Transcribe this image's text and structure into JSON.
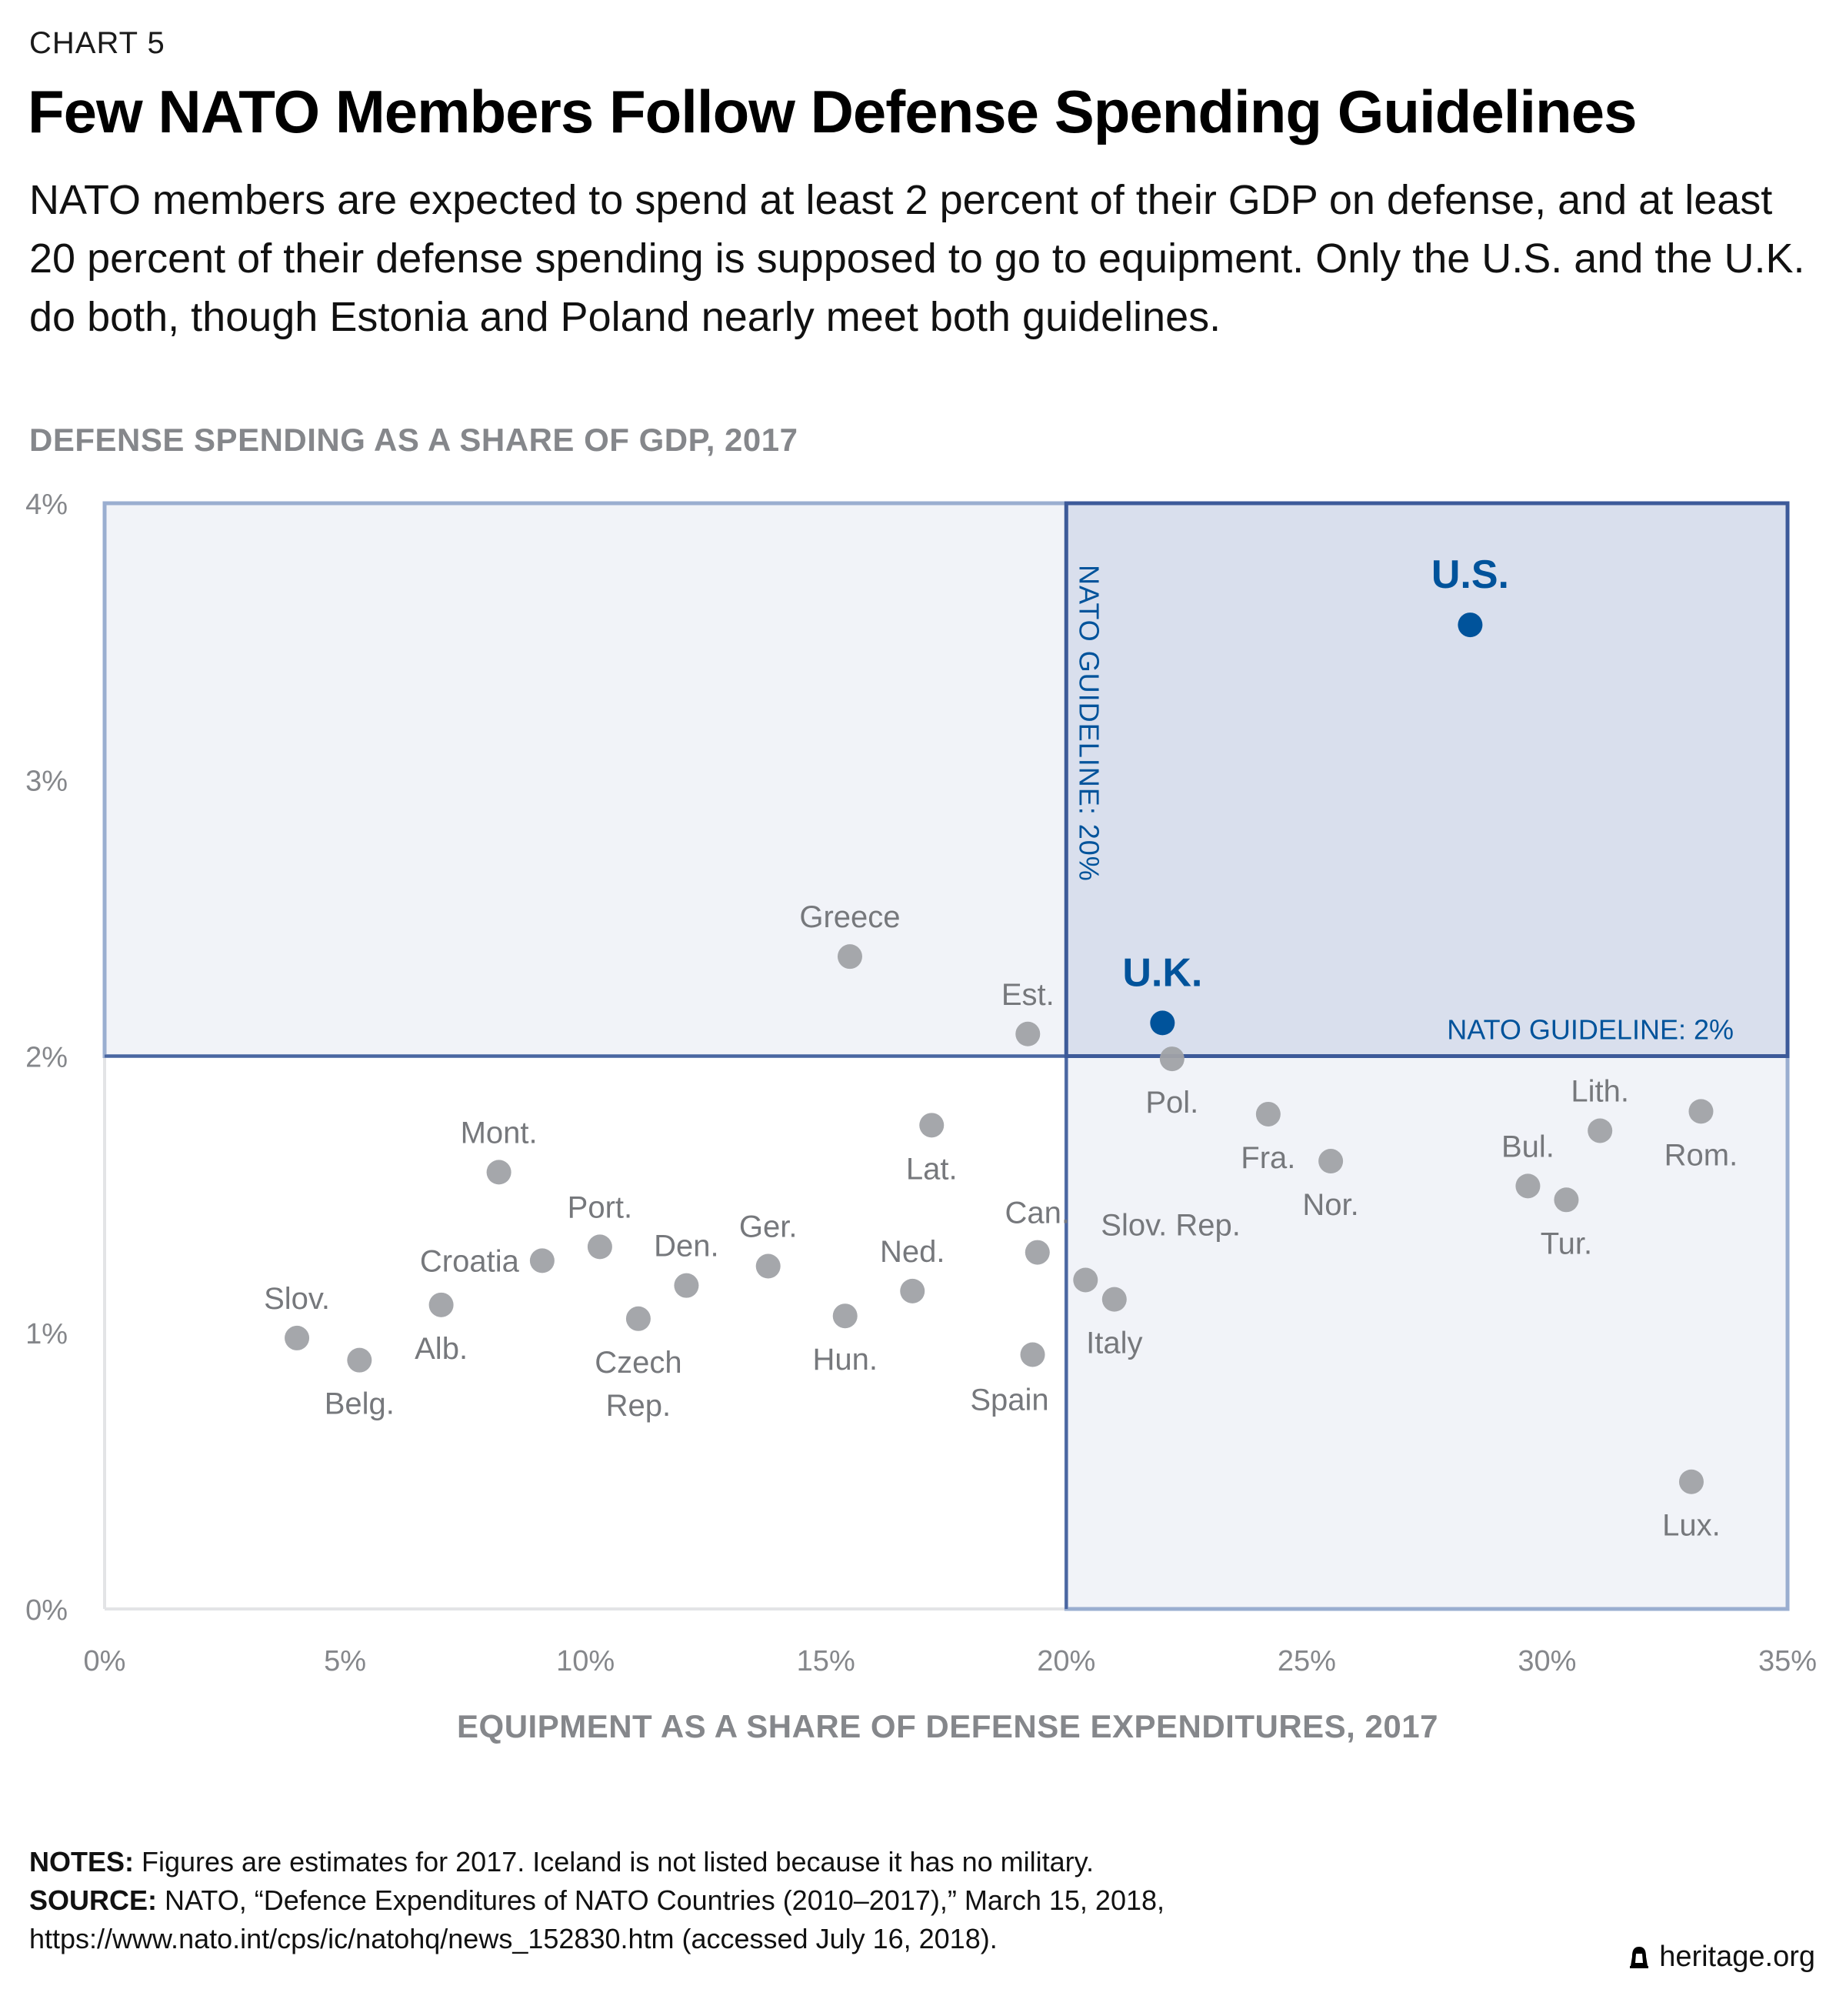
{
  "header": {
    "chart_label": "CHART 5",
    "title": "Few NATO Members Follow Defense Spending Guidelines",
    "subtitle": "NATO members are expected to spend at least 2 percent of their GDP on defense, and at least 20 percent of their defense spending is supposed to go to equipment. Only the U.S. and the U.K. do both, though Estonia and Poland nearly meet both guidelines."
  },
  "chart_data": {
    "type": "scatter",
    "title": "Few NATO Members Follow Defense Spending Guidelines",
    "xlabel": "EQUIPMENT AS A SHARE OF DEFENSE EXPENDITURES, 2017",
    "ylabel": "DEFENSE SPENDING AS A SHARE OF GDP, 2017",
    "xlim": [
      0,
      35
    ],
    "ylim": [
      0,
      4
    ],
    "x_ticks": [
      "0%",
      "5%",
      "10%",
      "15%",
      "20%",
      "25%",
      "30%",
      "35%"
    ],
    "x_tick_values": [
      0,
      5,
      10,
      15,
      20,
      25,
      30,
      35
    ],
    "y_ticks": [
      "0%",
      "1%",
      "2%",
      "3%",
      "4%"
    ],
    "y_tick_values": [
      0,
      1,
      2,
      3,
      4
    ],
    "grid": false,
    "guidelines": [
      {
        "axis": "x",
        "value": 20,
        "label": "NATO GUIDELINE: 20%"
      },
      {
        "axis": "y",
        "value": 2,
        "label": "NATO GUIDELINE: 2%"
      }
    ],
    "colors": {
      "highlight": "#00539b",
      "point": "#a0a2a7",
      "label": "#76787c",
      "region_fill": "#f1f3f8",
      "region_border": "#9aaed0",
      "both_fill": "#d9dfed",
      "both_border": "#3d5a99",
      "axis_text": "#85878b"
    },
    "points": [
      {
        "label": "U.S.",
        "x": 28.4,
        "y": 3.56,
        "highlight": true,
        "label_pos": "above"
      },
      {
        "label": "U.K.",
        "x": 22.0,
        "y": 2.12,
        "highlight": true,
        "label_pos": "above"
      },
      {
        "label": "Greece",
        "x": 15.5,
        "y": 2.36,
        "highlight": false,
        "label_pos": "above"
      },
      {
        "label": "Est.",
        "x": 19.2,
        "y": 2.08,
        "highlight": false,
        "label_pos": "above"
      },
      {
        "label": "Pol.",
        "x": 22.2,
        "y": 1.99,
        "highlight": false,
        "label_pos": "below"
      },
      {
        "label": "Fra.",
        "x": 24.2,
        "y": 1.79,
        "highlight": false,
        "label_pos": "below"
      },
      {
        "label": "Nor.",
        "x": 25.5,
        "y": 1.62,
        "highlight": false,
        "label_pos": "below"
      },
      {
        "label": "Lith.",
        "x": 31.1,
        "y": 1.73,
        "highlight": false,
        "label_pos": "above"
      },
      {
        "label": "Rom.",
        "x": 33.2,
        "y": 1.8,
        "highlight": false,
        "label_pos": "below"
      },
      {
        "label": "Bul.",
        "x": 29.6,
        "y": 1.53,
        "highlight": false,
        "label_pos": "above"
      },
      {
        "label": "Tur.",
        "x": 30.4,
        "y": 1.48,
        "highlight": false,
        "label_pos": "below"
      },
      {
        "label": "Lux.",
        "x": 33.0,
        "y": 0.46,
        "highlight": false,
        "label_pos": "below"
      },
      {
        "label": "Slov. Rep.",
        "x": 20.4,
        "y": 1.19,
        "highlight": false,
        "label_pos": "above-right"
      },
      {
        "label": "Italy",
        "x": 21.0,
        "y": 1.12,
        "highlight": false,
        "label_pos": "below"
      },
      {
        "label": "Can.",
        "x": 19.4,
        "y": 1.29,
        "highlight": false,
        "label_pos": "above"
      },
      {
        "label": "Spain",
        "x": 19.3,
        "y": 0.92,
        "highlight": false,
        "label_pos": "below-left"
      },
      {
        "label": "Lat.",
        "x": 17.2,
        "y": 1.75,
        "highlight": false,
        "label_pos": "below"
      },
      {
        "label": "Ned.",
        "x": 16.8,
        "y": 1.15,
        "highlight": false,
        "label_pos": "above"
      },
      {
        "label": "Hun.",
        "x": 15.4,
        "y": 1.06,
        "highlight": false,
        "label_pos": "below"
      },
      {
        "label": "Ger.",
        "x": 13.8,
        "y": 1.24,
        "highlight": false,
        "label_pos": "above"
      },
      {
        "label": "Den.",
        "x": 12.1,
        "y": 1.17,
        "highlight": false,
        "label_pos": "above"
      },
      {
        "label": "Czech Rep.",
        "x": 11.1,
        "y": 1.05,
        "highlight": false,
        "label_pos": "below"
      },
      {
        "label": "Port.",
        "x": 10.3,
        "y": 1.31,
        "highlight": false,
        "label_pos": "above"
      },
      {
        "label": "Croatia",
        "x": 9.1,
        "y": 1.26,
        "highlight": false,
        "label_pos": "left"
      },
      {
        "label": "Mont.",
        "x": 8.2,
        "y": 1.58,
        "highlight": false,
        "label_pos": "above"
      },
      {
        "label": "Alb.",
        "x": 7.0,
        "y": 1.1,
        "highlight": false,
        "label_pos": "below"
      },
      {
        "label": "Slov.",
        "x": 4.0,
        "y": 0.98,
        "highlight": false,
        "label_pos": "above"
      },
      {
        "label": "Belg.",
        "x": 5.3,
        "y": 0.9,
        "highlight": false,
        "label_pos": "below"
      }
    ]
  },
  "footer": {
    "notes_label": "NOTES:",
    "notes_text": " Figures are estimates for 2017. Iceland is not listed because it has no military.",
    "source_label": "SOURCE:",
    "source_text": " NATO, “Defence Expenditures of NATO Countries (2010–2017),” March 15, 2018,",
    "source_url": "https://www.nato.int/cps/ic/natohq/news_152830.htm (accessed July 16, 2018).",
    "brand": "heritage.org",
    "brand_icon": "liberty-bell-icon"
  }
}
